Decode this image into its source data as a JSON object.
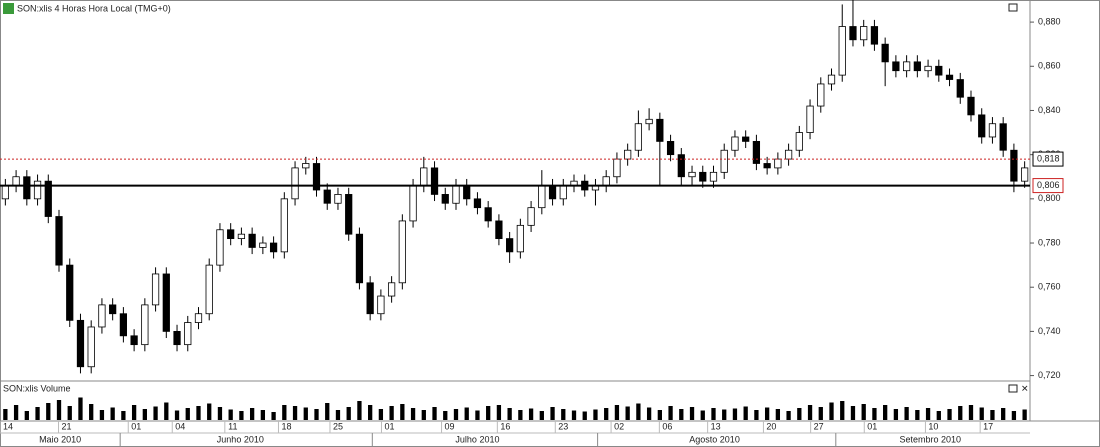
{
  "chart_data": {
    "type": "candlestick",
    "title": "SON:xlis 4 Horas Hora Local (TMG+0)",
    "volume_title": "SON:xlis Volume",
    "open": [
      0.8,
      0.806,
      0.81,
      0.8,
      0.808,
      0.792,
      0.77,
      0.745,
      0.724,
      0.742,
      0.752,
      0.748,
      0.738,
      0.734,
      0.752,
      0.766,
      0.74,
      0.734,
      0.744,
      0.748,
      0.77,
      0.786,
      0.782,
      0.784,
      0.778,
      0.78,
      0.776,
      0.8,
      0.814,
      0.816,
      0.804,
      0.798,
      0.802,
      0.784,
      0.762,
      0.748,
      0.756,
      0.762,
      0.79,
      0.806,
      0.814,
      0.802,
      0.798,
      0.806,
      0.8,
      0.796,
      0.79,
      0.782,
      0.776,
      0.788,
      0.796,
      0.806,
      0.8,
      0.806,
      0.808,
      0.804,
      0.806,
      0.81,
      0.818,
      0.822,
      0.834,
      0.836,
      0.826,
      0.82,
      0.81,
      0.812,
      0.808,
      0.812,
      0.822,
      0.828,
      0.826,
      0.816,
      0.814,
      0.818,
      0.822,
      0.83,
      0.842,
      0.852,
      0.856,
      0.878,
      0.872,
      0.878,
      0.87,
      0.862,
      0.858,
      0.862,
      0.858,
      0.86,
      0.856,
      0.854,
      0.846,
      0.838,
      0.828,
      0.834,
      0.822,
      0.808
    ],
    "high": [
      0.809,
      0.813,
      0.813,
      0.811,
      0.811,
      0.795,
      0.773,
      0.748,
      0.745,
      0.755,
      0.755,
      0.751,
      0.741,
      0.755,
      0.769,
      0.769,
      0.743,
      0.747,
      0.751,
      0.773,
      0.789,
      0.789,
      0.787,
      0.787,
      0.783,
      0.783,
      0.803,
      0.817,
      0.819,
      0.819,
      0.807,
      0.805,
      0.805,
      0.787,
      0.765,
      0.759,
      0.765,
      0.793,
      0.809,
      0.819,
      0.817,
      0.805,
      0.809,
      0.809,
      0.803,
      0.799,
      0.793,
      0.785,
      0.791,
      0.799,
      0.813,
      0.809,
      0.809,
      0.811,
      0.811,
      0.809,
      0.813,
      0.821,
      0.825,
      0.84,
      0.841,
      0.839,
      0.829,
      0.823,
      0.815,
      0.815,
      0.815,
      0.825,
      0.831,
      0.831,
      0.829,
      0.819,
      0.821,
      0.825,
      0.833,
      0.845,
      0.855,
      0.859,
      0.888,
      0.891,
      0.881,
      0.881,
      0.873,
      0.865,
      0.865,
      0.865,
      0.863,
      0.863,
      0.859,
      0.857,
      0.849,
      0.841,
      0.837,
      0.837,
      0.825,
      0.817
    ],
    "low": [
      0.797,
      0.803,
      0.797,
      0.797,
      0.789,
      0.767,
      0.742,
      0.721,
      0.721,
      0.739,
      0.745,
      0.735,
      0.731,
      0.731,
      0.749,
      0.737,
      0.731,
      0.731,
      0.741,
      0.745,
      0.767,
      0.779,
      0.779,
      0.775,
      0.775,
      0.773,
      0.773,
      0.797,
      0.811,
      0.801,
      0.795,
      0.795,
      0.781,
      0.759,
      0.745,
      0.745,
      0.753,
      0.759,
      0.787,
      0.803,
      0.799,
      0.795,
      0.795,
      0.797,
      0.793,
      0.787,
      0.779,
      0.771,
      0.773,
      0.785,
      0.793,
      0.797,
      0.797,
      0.803,
      0.801,
      0.797,
      0.803,
      0.807,
      0.815,
      0.819,
      0.831,
      0.806,
      0.817,
      0.806,
      0.806,
      0.805,
      0.805,
      0.809,
      0.819,
      0.823,
      0.813,
      0.811,
      0.811,
      0.815,
      0.819,
      0.827,
      0.839,
      0.849,
      0.853,
      0.869,
      0.869,
      0.867,
      0.851,
      0.855,
      0.855,
      0.855,
      0.855,
      0.853,
      0.851,
      0.843,
      0.835,
      0.825,
      0.825,
      0.819,
      0.803,
      0.805
    ],
    "close": [
      0.806,
      0.81,
      0.8,
      0.808,
      0.792,
      0.77,
      0.745,
      0.724,
      0.742,
      0.752,
      0.748,
      0.738,
      0.734,
      0.752,
      0.766,
      0.74,
      0.734,
      0.744,
      0.748,
      0.77,
      0.786,
      0.782,
      0.784,
      0.778,
      0.78,
      0.776,
      0.8,
      0.814,
      0.816,
      0.804,
      0.798,
      0.802,
      0.784,
      0.762,
      0.748,
      0.756,
      0.762,
      0.79,
      0.806,
      0.814,
      0.802,
      0.798,
      0.806,
      0.8,
      0.796,
      0.79,
      0.782,
      0.776,
      0.788,
      0.796,
      0.806,
      0.8,
      0.806,
      0.808,
      0.804,
      0.806,
      0.81,
      0.818,
      0.822,
      0.834,
      0.836,
      0.826,
      0.82,
      0.81,
      0.812,
      0.808,
      0.812,
      0.822,
      0.828,
      0.826,
      0.816,
      0.814,
      0.818,
      0.822,
      0.83,
      0.842,
      0.852,
      0.856,
      0.878,
      0.872,
      0.878,
      0.87,
      0.862,
      0.858,
      0.862,
      0.858,
      0.86,
      0.856,
      0.854,
      0.846,
      0.838,
      0.828,
      0.834,
      0.822,
      0.808,
      0.814
    ],
    "volume": [
      22,
      30,
      18,
      26,
      34,
      40,
      28,
      45,
      32,
      20,
      25,
      18,
      30,
      22,
      27,
      35,
      19,
      24,
      28,
      33,
      26,
      21,
      18,
      24,
      20,
      16,
      30,
      28,
      25,
      22,
      34,
      20,
      26,
      38,
      30,
      22,
      28,
      32,
      24,
      20,
      26,
      18,
      22,
      25,
      19,
      28,
      30,
      24,
      20,
      23,
      18,
      26,
      22,
      19,
      17,
      21,
      24,
      30,
      27,
      33,
      25,
      20,
      28,
      22,
      26,
      19,
      24,
      21,
      23,
      27,
      20,
      25,
      22,
      18,
      24,
      30,
      26,
      35,
      38,
      28,
      32,
      24,
      30,
      22,
      26,
      20,
      24,
      18,
      22,
      28,
      30,
      25,
      20,
      24,
      18,
      21
    ],
    "volume_ylim": [
      0,
      50
    ],
    "up_color": "#ffffff",
    "down_color": "#000000",
    "xlim": [
      0,
      96
    ],
    "ylim": [
      0.718,
      0.89
    ],
    "yticks": [
      {
        "value": 0.72,
        "label": "0,720"
      },
      {
        "value": 0.74,
        "label": "0,740"
      },
      {
        "value": 0.76,
        "label": "0,760"
      },
      {
        "value": 0.78,
        "label": "0,780"
      },
      {
        "value": 0.8,
        "label": "0,800"
      },
      {
        "value": 0.82,
        "label": "0,820"
      },
      {
        "value": 0.84,
        "label": "0,840"
      },
      {
        "value": 0.86,
        "label": "0,860"
      },
      {
        "value": 0.88,
        "label": "0,880"
      }
    ],
    "xticks": [
      {
        "value": 0.75,
        "label": "14"
      },
      {
        "value": 6.2,
        "label": "21"
      },
      {
        "value": 12.7,
        "label": "01"
      },
      {
        "value": 16.8,
        "label": "04"
      },
      {
        "value": 21.7,
        "label": "11"
      },
      {
        "value": 26.7,
        "label": "18"
      },
      {
        "value": 31.5,
        "label": "25"
      },
      {
        "value": 36.3,
        "label": "01"
      },
      {
        "value": 41.9,
        "label": "09"
      },
      {
        "value": 47.1,
        "label": "16"
      },
      {
        "value": 52.5,
        "label": "23"
      },
      {
        "value": 57.7,
        "label": "02"
      },
      {
        "value": 62.2,
        "label": "06"
      },
      {
        "value": 66.7,
        "label": "13"
      },
      {
        "value": 71.9,
        "label": "20"
      },
      {
        "value": 76.3,
        "label": "27"
      },
      {
        "value": 81.3,
        "label": "01"
      },
      {
        "value": 87.0,
        "label": "10"
      },
      {
        "value": 92.1,
        "label": "17"
      }
    ],
    "months": [
      {
        "value": 5.6,
        "label": "Maio 2010"
      },
      {
        "value": 22.4,
        "label": "Junho 2010"
      },
      {
        "value": 44.5,
        "label": "Julho 2010"
      },
      {
        "value": 66.6,
        "label": "Agosto 2010"
      },
      {
        "value": 86.7,
        "label": "Setembro 2010"
      }
    ],
    "month_breaks": [
      11.2,
      34.7,
      55.7,
      77.9
    ],
    "levels": [
      {
        "value": 0.818,
        "label": "0,818",
        "color": "#cc2222",
        "style": "dotted",
        "label_color": "#000000"
      },
      {
        "value": 0.806,
        "label": "0,806",
        "color": "#000000",
        "style": "solid",
        "label_color": "#cc2222"
      }
    ]
  }
}
